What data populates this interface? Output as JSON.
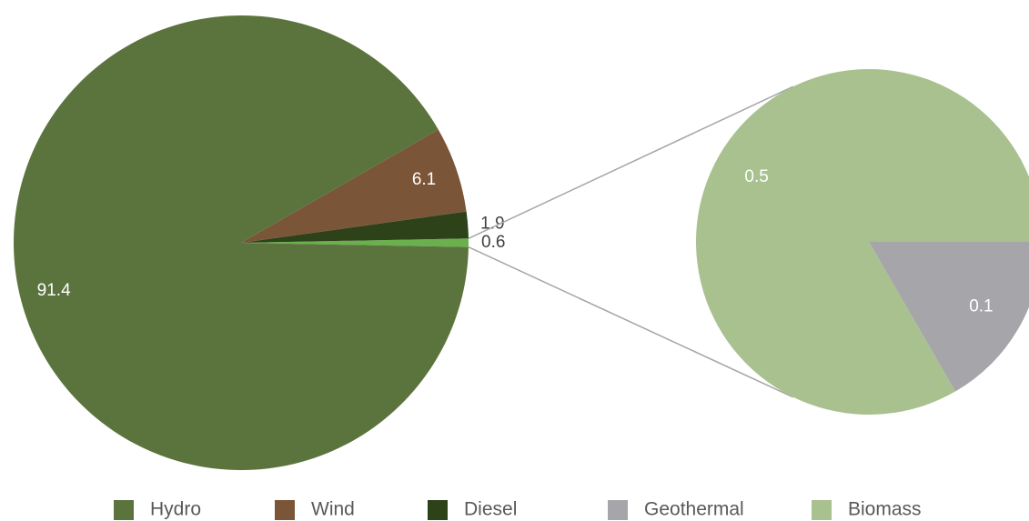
{
  "chart_data": {
    "type": "pie-of-pie",
    "main": {
      "categories": [
        "Hydro",
        "Wind",
        "Diesel",
        null
      ],
      "values": [
        91.4,
        6.1,
        1.9,
        0.6
      ],
      "colors": [
        "#5b743e",
        "#7a5538",
        "#2d4219",
        "#6ab04c"
      ]
    },
    "secondary": {
      "categories": [
        "Geothermal",
        "Biomass"
      ],
      "values": [
        0.1,
        0.5
      ],
      "colors": [
        "#a6a6aa",
        "#a8c18f"
      ]
    },
    "legend": "bottom"
  }
}
